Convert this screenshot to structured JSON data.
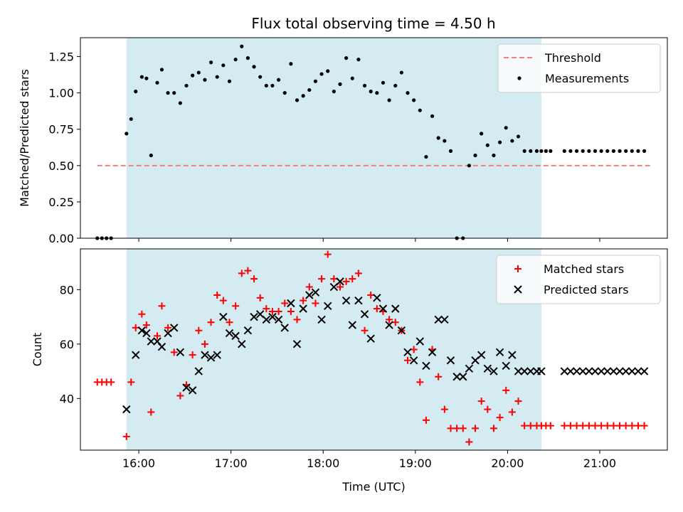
{
  "title": "Flux total observing time = 4.50 h",
  "colors": {
    "span": "#add8e6",
    "threshold": "#f08080",
    "measurement": "#000000",
    "matched": "#ff0000",
    "predicted": "#000000"
  },
  "chart_data": [
    {
      "type": "scatter",
      "name": "ratio-panel",
      "ylabel": "Matched/Predicted stars",
      "xlabel": "",
      "xlim": [
        "15:22",
        "21:44"
      ],
      "ylim": [
        0,
        1.38
      ],
      "yticks": [
        "0.00",
        "0.25",
        "0.50",
        "0.75",
        "1.00",
        "1.25"
      ],
      "observing_window": [
        "15:52",
        "20:22"
      ],
      "threshold": {
        "label": "Threshold",
        "value": 0.5,
        "x_range": [
          "15:33",
          "21:33"
        ]
      },
      "series": [
        {
          "name": "Measurements",
          "x": [
            "15:33",
            "15:36",
            "15:39",
            "15:42",
            "15:52",
            "15:55",
            "15:58",
            "16:02",
            "16:05",
            "16:08",
            "16:12",
            "16:15",
            "16:19",
            "16:23",
            "16:27",
            "16:31",
            "16:35",
            "16:39",
            "16:43",
            "16:47",
            "16:51",
            "16:55",
            "16:59",
            "17:03",
            "17:07",
            "17:11",
            "17:15",
            "17:19",
            "17:23",
            "17:27",
            "17:31",
            "17:35",
            "17:39",
            "17:43",
            "17:47",
            "17:51",
            "17:55",
            "17:59",
            "18:03",
            "18:07",
            "18:11",
            "18:15",
            "18:19",
            "18:23",
            "18:27",
            "18:31",
            "18:35",
            "18:39",
            "18:43",
            "18:47",
            "18:51",
            "18:55",
            "18:59",
            "19:03",
            "19:07",
            "19:11",
            "19:15",
            "19:19",
            "19:23",
            "19:27",
            "19:31",
            "19:35",
            "19:39",
            "19:43",
            "19:47",
            "19:51",
            "19:55",
            "19:59",
            "20:03",
            "20:07",
            "20:11",
            "20:15",
            "20:19",
            "20:22",
            "20:25",
            "20:28",
            "20:37",
            "20:41",
            "20:45",
            "20:49",
            "20:53",
            "20:57",
            "21:01",
            "21:05",
            "21:09",
            "21:13",
            "21:17",
            "21:21",
            "21:25",
            "21:29"
          ],
          "y": [
            0,
            0,
            0,
            0,
            0.72,
            0.82,
            1.01,
            1.11,
            1.1,
            0.57,
            1.07,
            1.16,
            1.0,
            1.0,
            0.93,
            1.05,
            1.12,
            1.14,
            1.09,
            1.21,
            1.11,
            1.19,
            1.08,
            1.23,
            1.32,
            1.24,
            1.18,
            1.11,
            1.05,
            1.05,
            1.09,
            1.0,
            1.2,
            0.95,
            0.98,
            1.02,
            1.08,
            1.13,
            1.15,
            1.01,
            1.06,
            1.24,
            1.1,
            1.23,
            1.05,
            1.01,
            1.0,
            1.07,
            0.95,
            1.05,
            1.14,
            1.0,
            0.95,
            0.88,
            0.56,
            0.84,
            0.69,
            0.67,
            0.6,
            0,
            0,
            0.5,
            0.57,
            0.72,
            0.64,
            0.57,
            0.66,
            0.76,
            0.67,
            0.7,
            0.6,
            0.6,
            0.6,
            0.6,
            0.6,
            0.6,
            0.6,
            0.6,
            0.6,
            0.6,
            0.6,
            0.6,
            0.6,
            0.6,
            0.6,
            0.6,
            0.6,
            0.6,
            0.6,
            0.6
          ]
        }
      ]
    },
    {
      "type": "scatter",
      "name": "count-panel",
      "ylabel": "Count",
      "xlabel": "Time (UTC)",
      "xlim": [
        "15:22",
        "21:44"
      ],
      "ylim": [
        21,
        95
      ],
      "yticks": [
        "40",
        "60",
        "80"
      ],
      "xticks": [
        "16:00",
        "17:00",
        "18:00",
        "19:00",
        "20:00",
        "21:00"
      ],
      "observing_window": [
        "15:52",
        "20:22"
      ],
      "series": [
        {
          "name": "Matched stars",
          "x": [
            "15:33",
            "15:36",
            "15:39",
            "15:42",
            "15:52",
            "15:55",
            "15:58",
            "16:02",
            "16:05",
            "16:08",
            "16:12",
            "16:15",
            "16:19",
            "16:23",
            "16:27",
            "16:31",
            "16:35",
            "16:39",
            "16:43",
            "16:47",
            "16:51",
            "16:55",
            "16:59",
            "17:03",
            "17:07",
            "17:11",
            "17:15",
            "17:19",
            "17:23",
            "17:27",
            "17:31",
            "17:35",
            "17:39",
            "17:43",
            "17:47",
            "17:51",
            "17:55",
            "17:59",
            "18:03",
            "18:07",
            "18:11",
            "18:15",
            "18:19",
            "18:23",
            "18:27",
            "18:31",
            "18:35",
            "18:39",
            "18:43",
            "18:47",
            "18:51",
            "18:55",
            "18:59",
            "19:03",
            "19:07",
            "19:11",
            "19:15",
            "19:19",
            "19:23",
            "19:27",
            "19:31",
            "19:35",
            "19:39",
            "19:43",
            "19:47",
            "19:51",
            "19:55",
            "19:59",
            "20:03",
            "20:07",
            "20:11",
            "20:15",
            "20:19",
            "20:22",
            "20:25",
            "20:28",
            "20:37",
            "20:41",
            "20:45",
            "20:49",
            "20:53",
            "20:57",
            "21:01",
            "21:05",
            "21:09",
            "21:13",
            "21:17",
            "21:21",
            "21:25",
            "21:29"
          ],
          "y": [
            46,
            46,
            46,
            46,
            26,
            46,
            66,
            71,
            67,
            35,
            63,
            74,
            66,
            57,
            41,
            45,
            56,
            65,
            60,
            68,
            78,
            76,
            68,
            74,
            86,
            87,
            84,
            77,
            73,
            72,
            72,
            75,
            72,
            69,
            76,
            81,
            75,
            84,
            93,
            84,
            81,
            83,
            84,
            86,
            65,
            78,
            73,
            72,
            69,
            68,
            65,
            54,
            58,
            46,
            32,
            58,
            48,
            36,
            29,
            29,
            29,
            24,
            29,
            39,
            36,
            29,
            33,
            43,
            35,
            39,
            30,
            30,
            30,
            30,
            30,
            30,
            30,
            30,
            30,
            30,
            30,
            30,
            30,
            30,
            30,
            30,
            30,
            30,
            30,
            30
          ]
        },
        {
          "name": "Predicted stars",
          "x": [
            "15:52",
            "15:58",
            "16:02",
            "16:05",
            "16:08",
            "16:12",
            "16:15",
            "16:19",
            "16:23",
            "16:27",
            "16:31",
            "16:35",
            "16:39",
            "16:43",
            "16:47",
            "16:51",
            "16:55",
            "16:59",
            "17:03",
            "17:07",
            "17:11",
            "17:15",
            "17:19",
            "17:23",
            "17:27",
            "17:31",
            "17:35",
            "17:39",
            "17:43",
            "17:47",
            "17:51",
            "17:55",
            "17:59",
            "18:03",
            "18:07",
            "18:11",
            "18:15",
            "18:19",
            "18:23",
            "18:27",
            "18:31",
            "18:35",
            "18:39",
            "18:43",
            "18:47",
            "18:51",
            "18:55",
            "18:59",
            "19:03",
            "19:07",
            "19:11",
            "19:15",
            "19:19",
            "19:23",
            "19:27",
            "19:31",
            "19:35",
            "19:39",
            "19:43",
            "19:47",
            "19:51",
            "19:55",
            "19:59",
            "20:03",
            "20:07",
            "20:11",
            "20:15",
            "20:19",
            "20:22",
            "20:37",
            "20:41",
            "20:45",
            "20:49",
            "20:53",
            "20:57",
            "21:01",
            "21:05",
            "21:09",
            "21:13",
            "21:17",
            "21:21",
            "21:25",
            "21:29"
          ],
          "y": [
            36,
            56,
            65,
            64,
            61,
            61,
            59,
            64,
            66,
            57,
            44,
            43,
            50,
            56,
            55,
            56,
            70,
            64,
            63,
            60,
            65,
            70,
            71,
            69,
            70,
            69,
            66,
            75,
            60,
            73,
            78,
            79,
            69,
            74,
            81,
            83,
            76,
            67,
            76,
            71,
            62,
            77,
            73,
            67,
            73,
            65,
            57,
            54,
            61,
            52,
            57,
            69,
            69,
            54,
            48,
            48,
            51,
            54,
            56,
            51,
            50,
            57,
            52,
            56,
            50,
            50,
            50,
            50,
            50,
            50,
            50,
            50,
            50,
            50,
            50,
            50,
            50,
            50,
            50,
            50,
            50,
            50,
            50
          ]
        }
      ]
    }
  ]
}
